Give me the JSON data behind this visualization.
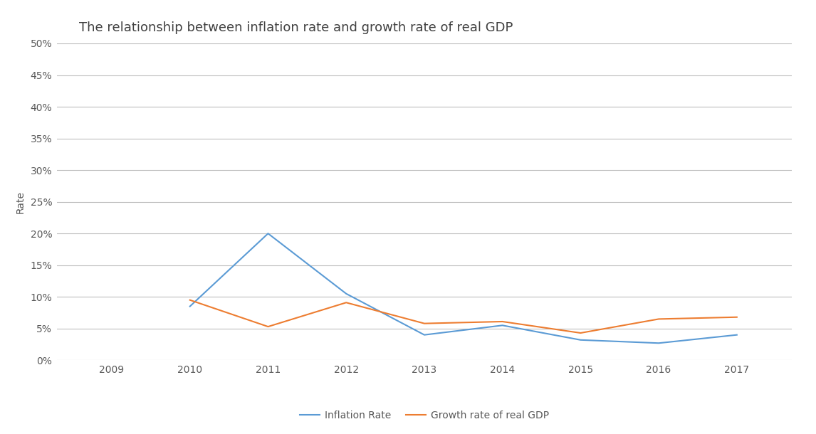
{
  "title": "The relationship between inflation rate and growth rate of real GDP",
  "years": [
    2009,
    2010,
    2011,
    2012,
    2013,
    2014,
    2015,
    2016,
    2017
  ],
  "inflation_rate": [
    null,
    0.085,
    0.2,
    0.105,
    0.04,
    0.055,
    0.032,
    0.027,
    0.04
  ],
  "gdp_growth_rate": [
    null,
    0.095,
    0.053,
    0.091,
    0.058,
    0.061,
    0.043,
    0.065,
    0.068
  ],
  "inflation_color": "#5B9BD5",
  "gdp_color": "#ED7D31",
  "ylabel": "Rate",
  "ylim": [
    0,
    0.5
  ],
  "yticks": [
    0.0,
    0.05,
    0.1,
    0.15,
    0.2,
    0.25,
    0.3,
    0.35,
    0.4,
    0.45,
    0.5
  ],
  "ytick_labels": [
    "0%",
    "5%",
    "10%",
    "15%",
    "20%",
    "25%",
    "30%",
    "35%",
    "40%",
    "45%",
    "50%"
  ],
  "legend_inflation": "Inflation Rate",
  "legend_gdp": "Growth rate of real GDP",
  "background_color": "#FFFFFF",
  "grid_color": "#BEBEBE",
  "title_fontsize": 13,
  "axis_fontsize": 10,
  "legend_fontsize": 10,
  "line_width": 1.5
}
